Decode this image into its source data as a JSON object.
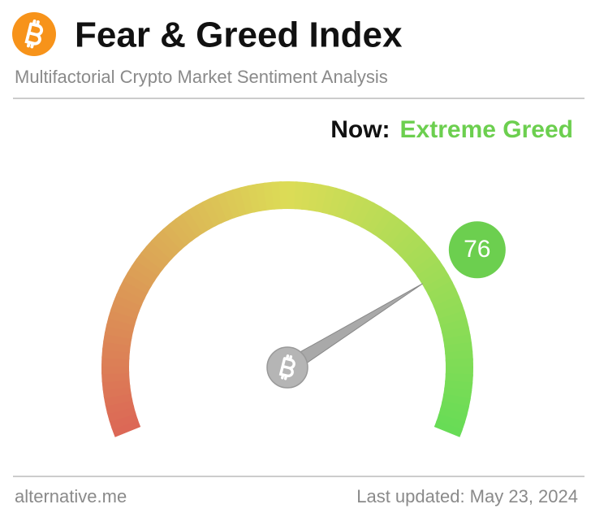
{
  "chart_data": {
    "type": "gauge",
    "title": "Fear & Greed Index",
    "subtitle": "Multifactorial Crypto Market Sentiment Analysis",
    "label": "Now:",
    "classification": "Extreme Greed",
    "value": 76,
    "ylim": [
      0,
      100
    ],
    "color": "#6ccf4f",
    "source": "alternative.me",
    "updated": "Last updated: May 23, 2024"
  }
}
